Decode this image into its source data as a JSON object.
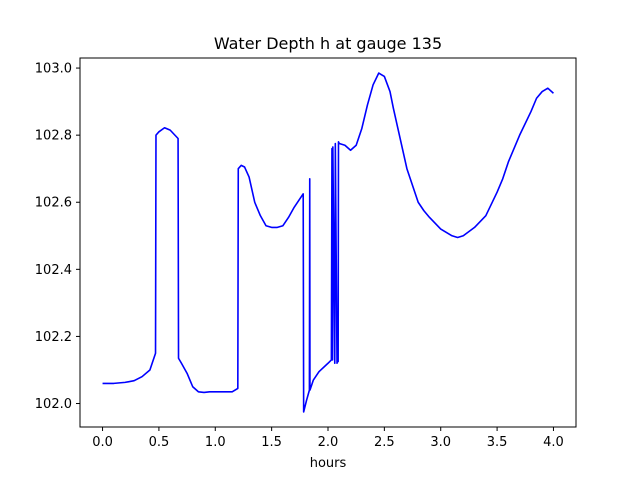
{
  "chart_data": {
    "type": "line",
    "title": "Water Depth h at gauge 135",
    "xlabel": "hours",
    "ylabel": "",
    "xlim": [
      -0.2,
      4.2
    ],
    "ylim": [
      101.93,
      103.03
    ],
    "xticks": [
      0.0,
      0.5,
      1.0,
      1.5,
      2.0,
      2.5,
      3.0,
      3.5,
      4.0
    ],
    "xtick_labels": [
      "0.0",
      "0.5",
      "1.0",
      "1.5",
      "2.0",
      "2.5",
      "3.0",
      "3.5",
      "4.0"
    ],
    "yticks": [
      102.0,
      102.2,
      102.4,
      102.6,
      102.8,
      103.0
    ],
    "ytick_labels": [
      "102.0",
      "102.2",
      "102.4",
      "102.6",
      "102.8",
      "103.0"
    ],
    "grid": false,
    "series": [
      {
        "color": "#0000ff",
        "x": [
          0.0,
          0.1,
          0.2,
          0.28,
          0.35,
          0.42,
          0.47,
          0.474,
          0.5,
          0.55,
          0.6,
          0.67,
          0.674,
          0.7,
          0.75,
          0.8,
          0.85,
          0.9,
          0.95,
          1.0,
          1.05,
          1.1,
          1.15,
          1.2,
          1.204,
          1.23,
          1.26,
          1.3,
          1.35,
          1.4,
          1.45,
          1.5,
          1.55,
          1.6,
          1.65,
          1.7,
          1.78,
          1.784,
          1.81,
          1.835,
          1.838,
          1.84,
          1.87,
          1.92,
          2.0,
          2.03,
          2.035,
          2.04,
          2.043,
          2.06,
          2.065,
          2.08,
          2.083,
          2.09,
          2.093,
          2.1,
          2.15,
          2.2,
          2.25,
          2.3,
          2.35,
          2.4,
          2.45,
          2.5,
          2.55,
          2.58,
          2.62,
          2.7,
          2.8,
          2.85,
          2.9,
          3.0,
          3.1,
          3.15,
          3.2,
          3.3,
          3.4,
          3.5,
          3.55,
          3.6,
          3.7,
          3.8,
          3.85,
          3.9,
          3.95,
          4.0
        ],
        "values": [
          102.06,
          102.06,
          102.063,
          102.068,
          102.08,
          102.1,
          102.15,
          102.8,
          102.81,
          102.822,
          102.815,
          102.79,
          102.135,
          102.12,
          102.09,
          102.05,
          102.035,
          102.033,
          102.035,
          102.035,
          102.035,
          102.035,
          102.035,
          102.045,
          102.7,
          102.71,
          102.705,
          102.675,
          102.6,
          102.56,
          102.53,
          102.525,
          102.525,
          102.53,
          102.555,
          102.585,
          102.625,
          101.975,
          102.01,
          102.04,
          102.67,
          102.04,
          102.07,
          102.095,
          102.12,
          102.13,
          102.76,
          102.13,
          102.765,
          102.12,
          102.775,
          102.12,
          102.125,
          102.125,
          102.78,
          102.775,
          102.77,
          102.755,
          102.77,
          102.82,
          102.89,
          102.95,
          102.985,
          102.975,
          102.93,
          102.88,
          102.82,
          102.7,
          102.6,
          102.575,
          102.555,
          102.52,
          102.5,
          102.495,
          102.5,
          102.525,
          102.56,
          102.63,
          102.67,
          102.72,
          102.8,
          102.87,
          102.91,
          102.93,
          102.94,
          102.925
        ]
      }
    ]
  }
}
